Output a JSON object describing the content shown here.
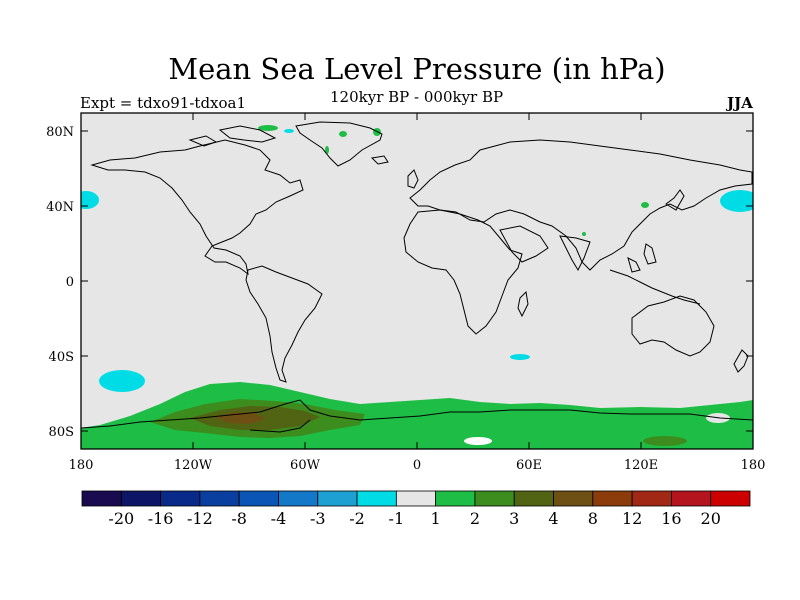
{
  "title": "Mean Sea Level Pressure (in hPa)",
  "subtitle": "120kyr BP - 000kyr BP",
  "expt_label": "Expt = tdxo91-tdxoa1",
  "season": "JJA",
  "lat_ticks": [
    "80N",
    "40N",
    "0",
    "40S",
    "80S"
  ],
  "lon_ticks": [
    "180",
    "120W",
    "60W",
    "0",
    "60E",
    "120E",
    "180"
  ],
  "colorbar": {
    "colors": [
      "#1a0a50",
      "#0d1666",
      "#0a2a8a",
      "#0a3fa0",
      "#0a55b5",
      "#1478c8",
      "#1ea0d2",
      "#00dce6",
      "#e6e6e6",
      "#1ebe46",
      "#3c8c1e",
      "#506414",
      "#6e5014",
      "#8c3c0a",
      "#a02814",
      "#b4141e",
      "#cd0000"
    ],
    "labels": [
      "-20",
      "-16",
      "-12",
      "-8",
      "-4",
      "-3",
      "-2",
      "-1",
      "1",
      "2",
      "3",
      "4",
      "8",
      "12",
      "16",
      "20"
    ]
  },
  "map": {
    "background": "#e6e6e6",
    "land_outline": "#000000",
    "anomaly_colors": {
      "neg1": "#00dce6",
      "pos1": "#1ebe46",
      "pos2": "#3c8c1e",
      "pos3": "#506414",
      "pos4": "#6e5014",
      "zero": "#e6e6e6",
      "white": "#ffffff"
    }
  }
}
